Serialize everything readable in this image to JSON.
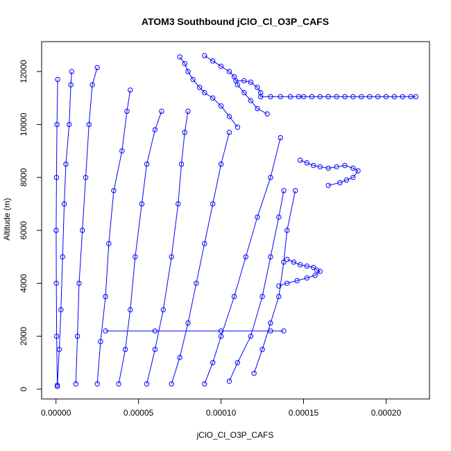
{
  "chart_data": {
    "type": "scatter",
    "title": "ATOM3 Southbound jClO_Cl_O3P_CAFS",
    "xlabel": "jClO_Cl_O3P_CAFS",
    "ylabel": "Altitude (m)",
    "xlim": [
      -8.7e-06,
      0.0002263
    ],
    "ylim": [
      -370,
      13130
    ],
    "xticks": [
      0.0,
      5e-05,
      0.0001,
      0.00015,
      0.0002
    ],
    "xtick_labels": [
      "0.00000",
      "0.00005",
      "0.00010",
      "0.00015",
      "0.00020"
    ],
    "yticks": [
      0,
      2000,
      4000,
      6000,
      8000,
      10000,
      12000
    ],
    "ytick_labels": [
      "0",
      "2000",
      "4000",
      "6000",
      "8000",
      "10000",
      "12000"
    ],
    "marker": "open-circle",
    "color": "#0000ff",
    "grid": false,
    "series": [
      {
        "x": [
          8e-07,
          4e-07,
          2e-07,
          1e-07,
          3e-07,
          6e-07,
          1e-06
        ],
        "y": [
          150,
          2000,
          4000,
          6000,
          8000,
          10000,
          11700
        ]
      },
      {
        "x": [
          8e-07,
          2e-06,
          3e-06,
          4e-06,
          5e-06,
          6e-06,
          8e-06,
          9e-06,
          9.5e-06
        ],
        "y": [
          100,
          1500,
          3000,
          5000,
          7000,
          8500,
          10000,
          11500,
          12000
        ]
      },
      {
        "x": [
          1.2e-05,
          1.3e-05,
          1.4e-05,
          1.6e-05,
          1.8e-05,
          2e-05,
          2.2e-05,
          2.5e-05
        ],
        "y": [
          200,
          2000,
          4000,
          6000,
          8000,
          10000,
          11500,
          12150
        ]
      },
      {
        "x": [
          2.5e-05,
          2.7e-05,
          3e-05,
          3.2e-05,
          3.5e-05,
          4e-05,
          4.3e-05,
          4.5e-05
        ],
        "y": [
          200,
          1800,
          3500,
          5500,
          7500,
          9000,
          10500,
          11300
        ]
      },
      {
        "x": [
          3.8e-05,
          4.2e-05,
          4.5e-05,
          4.8e-05,
          5.2e-05,
          5.5e-05,
          6e-05,
          6.4e-05
        ],
        "y": [
          200,
          1500,
          3000,
          5000,
          7000,
          8500,
          9800,
          10500
        ]
      },
      {
        "x": [
          5.5e-05,
          6e-05,
          6.5e-05,
          7e-05,
          7.4e-05,
          7.6e-05,
          7.8e-05,
          8e-05
        ],
        "y": [
          200,
          1500,
          3000,
          5000,
          7000,
          8500,
          9700,
          10500
        ]
      },
      {
        "x": [
          7e-05,
          7.5e-05,
          8e-05,
          8.5e-05,
          9e-05,
          9.5e-05,
          0.0001,
          0.000105
        ],
        "y": [
          200,
          1200,
          2500,
          4000,
          5500,
          7000,
          8500,
          9700
        ]
      },
      {
        "x": [
          9e-05,
          9.5e-05,
          0.0001,
          0.000108,
          0.000115,
          0.000122,
          0.00013,
          0.000136
        ],
        "y": [
          200,
          1000,
          2000,
          3500,
          5000,
          6500,
          8000,
          9500
        ]
      },
      {
        "x": [
          0.000105,
          0.00011,
          0.000118,
          0.000125,
          0.00013,
          0.000135,
          0.000138
        ],
        "y": [
          300,
          1000,
          2000,
          3500,
          5000,
          6500,
          7500
        ]
      },
      {
        "x": [
          0.00012,
          0.000125,
          0.00013,
          0.000135,
          0.000138,
          0.00014,
          0.000145
        ],
        "y": [
          600,
          1500,
          2500,
          3500,
          4800,
          6000,
          7500
        ]
      },
      {
        "x": [
          7.5e-05,
          7.8e-05,
          8e-05,
          8.3e-05,
          8.7e-05,
          9e-05,
          9.5e-05,
          0.0001,
          0.000105,
          0.00011
        ],
        "y": [
          12550,
          12300,
          12000,
          11700,
          11400,
          11200,
          11000,
          10700,
          10300,
          9900
        ]
      },
      {
        "x": [
          9e-05,
          9.5e-05,
          0.0001,
          0.000105,
          0.000108,
          0.00011,
          0.000114,
          0.000118,
          0.000122,
          0.000128
        ],
        "y": [
          12600,
          12400,
          12200,
          12000,
          11800,
          11500,
          11200,
          10900,
          10600,
          10400
        ]
      },
      {
        "x": [
          0.000109,
          0.000114,
          0.000118,
          0.000122,
          0.000124,
          0.000124,
          0.00013,
          0.000136,
          0.000142,
          0.000147,
          0.00015,
          0.000155,
          0.00016,
          0.000165,
          0.00017,
          0.000175,
          0.00018,
          0.000185,
          0.00019,
          0.000195,
          0.0002,
          0.000205,
          0.00021,
          0.000215,
          0.000218
        ],
        "y": [
          11650,
          11650,
          11600,
          11400,
          11200,
          11050,
          11050,
          11050,
          11050,
          11050,
          11050,
          11050,
          11050,
          11050,
          11050,
          11050,
          11050,
          11050,
          11050,
          11050,
          11050,
          11050,
          11050,
          11050,
          11050
        ]
      },
      {
        "x": [
          0.000148,
          0.000152,
          0.000156,
          0.00016,
          0.000165,
          0.00017,
          0.000175,
          0.00018,
          0.000183,
          0.00018,
          0.000176,
          0.000172,
          0.000165
        ],
        "y": [
          8650,
          8550,
          8450,
          8400,
          8350,
          8400,
          8450,
          8350,
          8250,
          8000,
          7900,
          7800,
          7700
        ]
      },
      {
        "x": [
          0.00014,
          0.000144,
          0.000148,
          0.000152,
          0.000156,
          0.000158,
          0.00016,
          0.000157,
          0.000152,
          0.000146,
          0.00014,
          0.000135
        ],
        "y": [
          4900,
          4800,
          4700,
          4650,
          4600,
          4500,
          4450,
          4300,
          4200,
          4100,
          4000,
          3900
        ]
      },
      {
        "x": [
          3e-05,
          6e-05,
          0.0001,
          0.00013,
          0.000138
        ],
        "y": [
          2200,
          2200,
          2200,
          2200,
          2200
        ]
      }
    ]
  }
}
